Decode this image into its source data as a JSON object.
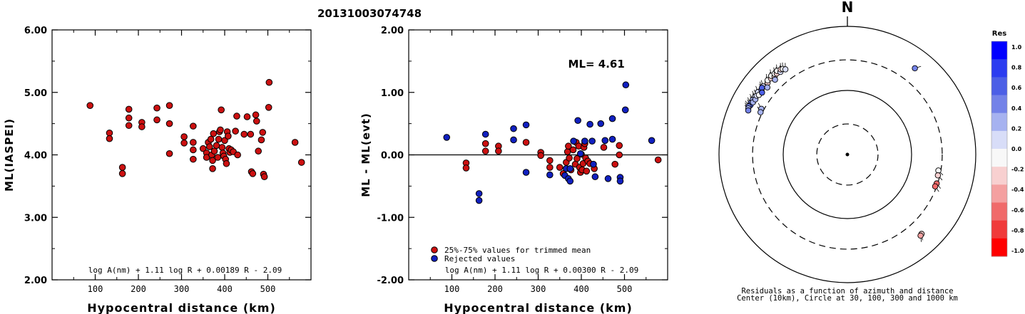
{
  "title": "20131003074748",
  "chart_data": [
    {
      "type": "scatter",
      "ylabel": "ML(IASPEI)",
      "xlabel": "Hypocentral distance (km)",
      "xlim": [
        0,
        600
      ],
      "ylim": [
        2.0,
        6.0
      ],
      "x_ticks": [
        "100",
        "200",
        "300",
        "400",
        "500"
      ],
      "y_ticks": [
        "2.00",
        "3.00",
        "4.00",
        "5.00",
        "6.00"
      ],
      "formula": "log A(nm) + 1.11 log R + 0.00189 R - 2.09",
      "point_color": "#cc1010",
      "points": [
        [
          88,
          4.79
        ],
        [
          133,
          4.35
        ],
        [
          133,
          4.26
        ],
        [
          163,
          3.8
        ],
        [
          163,
          3.7
        ],
        [
          178,
          4.73
        ],
        [
          178,
          4.59
        ],
        [
          178,
          4.47
        ],
        [
          208,
          4.52
        ],
        [
          208,
          4.45
        ],
        [
          243,
          4.75
        ],
        [
          243,
          4.56
        ],
        [
          272,
          4.79
        ],
        [
          272,
          4.5
        ],
        [
          272,
          4.02
        ],
        [
          306,
          4.29
        ],
        [
          306,
          4.19
        ],
        [
          327,
          4.46
        ],
        [
          327,
          4.2
        ],
        [
          327,
          4.08
        ],
        [
          327,
          3.93
        ],
        [
          350,
          4.1
        ],
        [
          358,
          4.03
        ],
        [
          358,
          3.96
        ],
        [
          362,
          4.2
        ],
        [
          365,
          4.13
        ],
        [
          368,
          4.25
        ],
        [
          370,
          4.0
        ],
        [
          372,
          3.91
        ],
        [
          372,
          3.78
        ],
        [
          374,
          4.34
        ],
        [
          376,
          4.06
        ],
        [
          381,
          4.15
        ],
        [
          384,
          3.96
        ],
        [
          386,
          4.25
        ],
        [
          388,
          4.37
        ],
        [
          390,
          4.4
        ],
        [
          392,
          4.72
        ],
        [
          394,
          4.12
        ],
        [
          396,
          4.03
        ],
        [
          398,
          3.98
        ],
        [
          400,
          4.23
        ],
        [
          402,
          3.93
        ],
        [
          404,
          3.86
        ],
        [
          406,
          4.37
        ],
        [
          408,
          4.3
        ],
        [
          410,
          4.1
        ],
        [
          412,
          4.04
        ],
        [
          415,
          4.08
        ],
        [
          420,
          4.05
        ],
        [
          425,
          4.38
        ],
        [
          428,
          4.62
        ],
        [
          430,
          4.0
        ],
        [
          445,
          4.33
        ],
        [
          452,
          4.61
        ],
        [
          460,
          4.33
        ],
        [
          462,
          3.73
        ],
        [
          465,
          3.7
        ],
        [
          472,
          4.64
        ],
        [
          474,
          4.54
        ],
        [
          478,
          4.06
        ],
        [
          485,
          4.24
        ],
        [
          488,
          4.36
        ],
        [
          490,
          3.69
        ],
        [
          492,
          3.65
        ],
        [
          502,
          4.76
        ],
        [
          503,
          5.16
        ],
        [
          563,
          4.2
        ],
        [
          578,
          3.88
        ]
      ]
    },
    {
      "type": "scatter",
      "ylabel": "ML - ML(evt)",
      "xlabel": "Hypocentral distance (km)",
      "xlim": [
        0,
        600
      ],
      "ylim": [
        -2.0,
        2.0
      ],
      "x_ticks": [
        "100",
        "200",
        "300",
        "400",
        "500"
      ],
      "y_ticks": [
        "-2.00",
        "-1.00",
        "0.00",
        "1.00",
        "2.00"
      ],
      "annotation": "ML= 4.61",
      "legend": [
        "25%-75% values for trimmed mean",
        "Rejected values"
      ],
      "formula": "log A(nm) + 1.11 log R + 0.00300 R - 2.09",
      "series": [
        {
          "name": "25%-75% values for trimmed mean",
          "color": "#cc1010",
          "points": [
            [
              133,
              -0.13
            ],
            [
              133,
              -0.21
            ],
            [
              178,
              0.18
            ],
            [
              178,
              0.06
            ],
            [
              208,
              0.14
            ],
            [
              208,
              0.06
            ],
            [
              272,
              0.2
            ],
            [
              306,
              0.04
            ],
            [
              306,
              -0.01
            ],
            [
              327,
              -0.09
            ],
            [
              327,
              -0.2
            ],
            [
              350,
              -0.2
            ],
            [
              358,
              -0.3
            ],
            [
              365,
              -0.12
            ],
            [
              368,
              0.05
            ],
            [
              370,
              0.14
            ],
            [
              372,
              -0.05
            ],
            [
              376,
              -0.24
            ],
            [
              381,
              0.08
            ],
            [
              386,
              -0.15
            ],
            [
              388,
              0.2
            ],
            [
              390,
              -0.06
            ],
            [
              394,
              0.14
            ],
            [
              396,
              -0.2
            ],
            [
              398,
              -0.28
            ],
            [
              400,
              0.01
            ],
            [
              402,
              -0.24
            ],
            [
              404,
              -0.14
            ],
            [
              406,
              0.12
            ],
            [
              408,
              0.18
            ],
            [
              410,
              -0.05
            ],
            [
              412,
              -0.26
            ],
            [
              415,
              -0.1
            ],
            [
              420,
              -0.14
            ],
            [
              430,
              -0.22
            ],
            [
              452,
              0.12
            ],
            [
              478,
              -0.15
            ],
            [
              488,
              0.15
            ],
            [
              488,
              0.0
            ],
            [
              578,
              -0.08
            ]
          ]
        },
        {
          "name": "Rejected values",
          "color": "#1020c0",
          "points": [
            [
              88,
              0.28
            ],
            [
              163,
              -0.62
            ],
            [
              163,
              -0.73
            ],
            [
              178,
              0.33
            ],
            [
              243,
              0.42
            ],
            [
              243,
              0.24
            ],
            [
              272,
              0.48
            ],
            [
              272,
              -0.28
            ],
            [
              327,
              -0.32
            ],
            [
              362,
              -0.33
            ],
            [
              365,
              -0.22
            ],
            [
              370,
              -0.38
            ],
            [
              374,
              -0.22
            ],
            [
              374,
              -0.42
            ],
            [
              382,
              0.22
            ],
            [
              392,
              0.55
            ],
            [
              398,
              0.02
            ],
            [
              408,
              0.22
            ],
            [
              420,
              0.49
            ],
            [
              425,
              0.22
            ],
            [
              428,
              -0.15
            ],
            [
              432,
              -0.35
            ],
            [
              445,
              0.5
            ],
            [
              455,
              0.23
            ],
            [
              462,
              -0.38
            ],
            [
              472,
              0.58
            ],
            [
              472,
              0.25
            ],
            [
              490,
              -0.36
            ],
            [
              490,
              -0.42
            ],
            [
              502,
              0.72
            ],
            [
              503,
              1.12
            ],
            [
              563,
              0.23
            ]
          ]
        }
      ]
    },
    {
      "type": "polar-scatter",
      "north_label": "N",
      "caption": [
        "Residuals as a function of azimuth and distance",
        "Center (10km), Circle at 30, 100, 300 and 1000 km"
      ],
      "rings_km": [
        30,
        100,
        300,
        1000
      ],
      "rings_dashed": [
        true,
        false,
        true,
        false
      ],
      "colorbar_title": "Res",
      "colorbar_labels": [
        "1.0",
        "0.8",
        "0.6",
        "0.4",
        "0.2",
        "0.0",
        "-0.2",
        "-0.4",
        "-0.6",
        "-0.8",
        "-1.0"
      ],
      "colorbar_stops": [
        "#0000ff",
        "#2b3cf0",
        "#4c5fe6",
        "#7382e8",
        "#a6b2f0",
        "#d8ddf8",
        "#f8f8f8",
        "#f8d0d0",
        "#f4a0a0",
        "#f06a6a",
        "#f03a3a",
        "#ff0000"
      ],
      "stations": [
        {
          "az": -51,
          "dist": 490,
          "res": 0.05
        },
        {
          "az": -48,
          "dist": 470,
          "res": -0.2
        },
        {
          "az": -47,
          "dist": 500,
          "res": -0.15
        },
        {
          "az": -45,
          "dist": 480,
          "res": -0.3
        },
        {
          "az": -44,
          "dist": 510,
          "res": -0.1
        },
        {
          "az": -43,
          "dist": 460,
          "res": -0.25
        },
        {
          "az": -42,
          "dist": 495,
          "res": 0.0
        },
        {
          "az": -41,
          "dist": 475,
          "res": -0.35
        },
        {
          "az": -40,
          "dist": 505,
          "res": -0.05
        },
        {
          "az": -39,
          "dist": 455,
          "res": 0.1
        },
        {
          "az": -38,
          "dist": 485,
          "res": -0.2
        },
        {
          "az": -37,
          "dist": 470,
          "res": -0.1
        },
        {
          "az": -36,
          "dist": 440,
          "res": 0.15
        },
        {
          "az": -44,
          "dist": 420,
          "res": 0.3
        },
        {
          "az": -50,
          "dist": 425,
          "res": 0.25
        },
        {
          "az": -58,
          "dist": 500,
          "res": 0.05
        },
        {
          "az": -60,
          "dist": 505,
          "res": 0.35
        },
        {
          "az": -62,
          "dist": 510,
          "res": 0.45
        },
        {
          "az": -63,
          "dist": 495,
          "res": 0.6
        },
        {
          "az": -64,
          "dist": 515,
          "res": 0.4
        },
        {
          "az": -61,
          "dist": 480,
          "res": 0.3
        },
        {
          "az": -59,
          "dist": 470,
          "res": 0.2
        },
        {
          "az": -57,
          "dist": 485,
          "res": 0.1
        },
        {
          "az": -55,
          "dist": 500,
          "res": 0.15
        },
        {
          "az": -53,
          "dist": 475,
          "res": 0.45
        },
        {
          "az": -52,
          "dist": 490,
          "res": 0.55
        },
        {
          "az": -56,
          "dist": 460,
          "res": -0.1
        },
        {
          "az": -65,
          "dist": 505,
          "res": 0.25
        },
        {
          "az": -66,
          "dist": 490,
          "res": 0.5
        },
        {
          "az": -54,
          "dist": 440,
          "res": 0.65
        },
        {
          "az": -62,
          "dist": 330,
          "res": 0.3
        },
        {
          "az": -64,
          "dist": 320,
          "res": 0.2
        },
        {
          "az": 38,
          "dist": 510,
          "res": 0.4
        },
        {
          "az": 100,
          "dist": 275,
          "res": -0.15
        },
        {
          "az": 103,
          "dist": 280,
          "res": -0.2
        },
        {
          "az": 108,
          "dist": 290,
          "res": -0.6
        },
        {
          "az": 110,
          "dist": 285,
          "res": -0.7
        },
        {
          "az": 137,
          "dist": 495,
          "res": -0.35
        },
        {
          "az": 138,
          "dist": 505,
          "res": -0.45
        }
      ]
    }
  ]
}
